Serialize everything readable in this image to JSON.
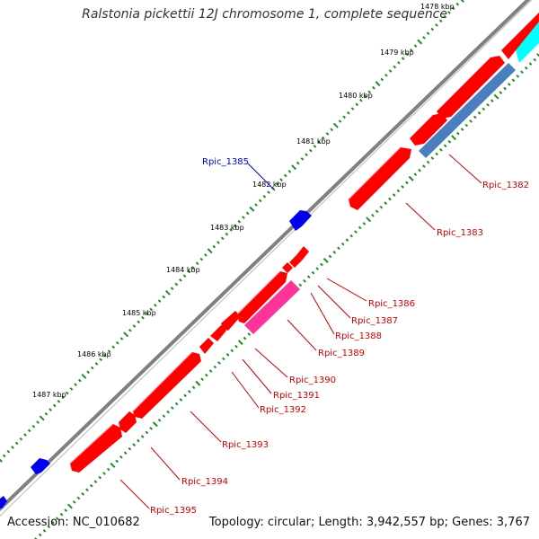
{
  "title": "Ralstonia pickettii 12J chromosome 1, complete sequence",
  "footer": {
    "accession": "Accession: NC_010682",
    "summary": "Topology: circular; Length: 3,942,557 bp; Genes: 3,767"
  },
  "colors": {
    "backbone": "#808080",
    "cds": "#ff0000",
    "pink": "#ff3399",
    "blue": "#0000ee",
    "steel": "#4a7fbf",
    "cyan": "#00ffff",
    "ticks": "#228b22",
    "label_red": "#cc0000",
    "label_blue": "#0000cc"
  },
  "kbp_labels": [
    "1478 kbp",
    "1479 kbp",
    "1480 kbp",
    "1481 kbp",
    "1482 kbp",
    "1483 kbp",
    "1484 kbp",
    "1485 kbp",
    "1486 kbp",
    "1487 kbp"
  ],
  "gene_labels": [
    "Rpic_1382",
    "Rpic_1383",
    "Rpic_1385",
    "Rpic_1386",
    "Rpic_1387",
    "Rpic_1388",
    "Rpic_1389",
    "Rpic_1390",
    "Rpic_1391",
    "Rpic_1392",
    "Rpic_1393",
    "Rpic_1394",
    "Rpic_1395"
  ]
}
